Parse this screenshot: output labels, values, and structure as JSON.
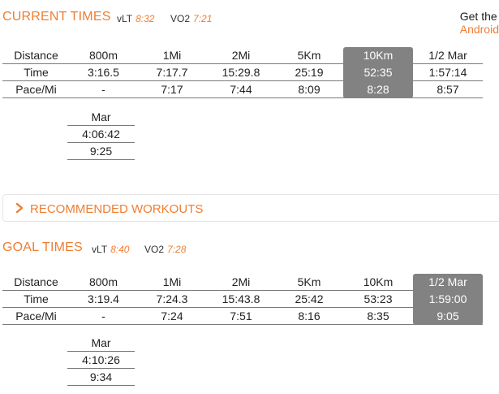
{
  "current": {
    "title": "CURRENT TIMES",
    "vlt_label": "vLT",
    "vlt_value": "8:32",
    "vo2_label": "VO2",
    "vo2_value": "7:21",
    "headers": [
      "Distance",
      "800m",
      "1Mi",
      "2Mi",
      "5Km",
      "10Km",
      "1/2 Mar"
    ],
    "time_row": [
      "Time",
      "3:16.5",
      "7:17.7",
      "15:29.8",
      "25:19",
      "52:35",
      "1:57:14"
    ],
    "pace_row": [
      "Pace/Mi",
      "-",
      "7:17",
      "7:44",
      "8:09",
      "8:28",
      "8:57"
    ],
    "highlight_column": "10Km",
    "marathon": {
      "header": "Mar",
      "time": "4:06:42",
      "pace": "9:25"
    }
  },
  "promo": {
    "line1": "Get the",
    "line2": "Android"
  },
  "recommended": {
    "label": "RECOMMENDED WORKOUTS",
    "icon": "chevron-right-icon"
  },
  "goal": {
    "title": "GOAL TIMES",
    "vlt_label": "vLT",
    "vlt_value": "8:40",
    "vo2_label": "VO2",
    "vo2_value": "7:28",
    "headers": [
      "Distance",
      "800m",
      "1Mi",
      "2Mi",
      "5Km",
      "10Km",
      "1/2 Mar"
    ],
    "time_row": [
      "Time",
      "3:19.4",
      "7:24.3",
      "15:43.8",
      "25:42",
      "53:23",
      "1:59:00"
    ],
    "pace_row": [
      "Pace/Mi",
      "-",
      "7:24",
      "7:51",
      "8:16",
      "8:35",
      "9:05"
    ],
    "highlight_column": "1/2 Mar",
    "marathon": {
      "header": "Mar",
      "time": "4:10:26",
      "pace": "9:34"
    }
  },
  "colors": {
    "accent": "#ef7d33",
    "highlight": "#828282"
  }
}
